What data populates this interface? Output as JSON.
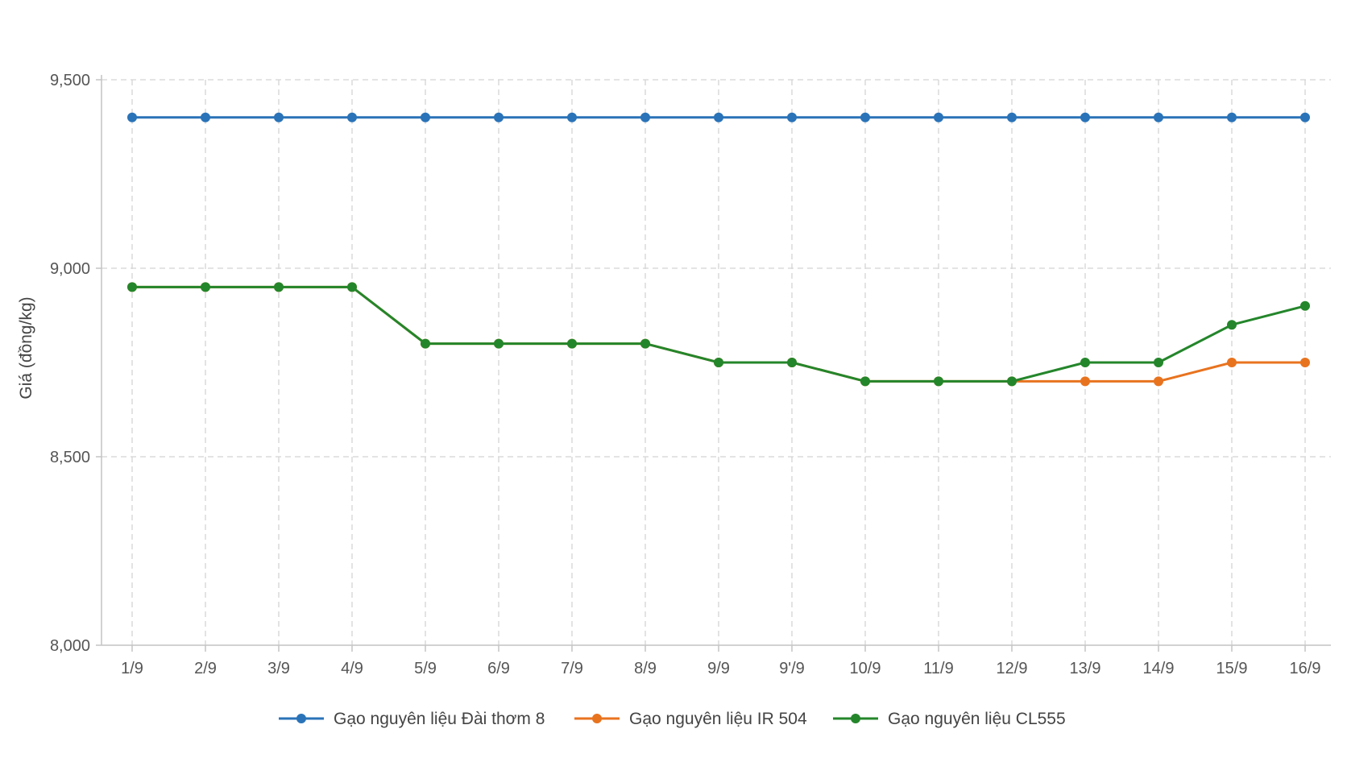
{
  "chart_data": {
    "type": "line",
    "title": "",
    "xlabel": "",
    "ylabel": "Giá (đồng/kg)",
    "ylim": [
      8000,
      9500
    ],
    "yticks": [
      8000,
      8500,
      9000,
      9500
    ],
    "ytick_labels": [
      "8,000",
      "8,500",
      "9,000",
      "9,500"
    ],
    "grid": true,
    "legend_position": "bottom",
    "categories": [
      "1/9",
      "2/9",
      "3/9",
      "4/9",
      "5/9",
      "6/9",
      "7/9",
      "8/9",
      "9/9",
      "9ʹ/9",
      "10/9",
      "11/9",
      "12/9",
      "13/9",
      "14/9",
      "15/9",
      "16/9"
    ],
    "series": [
      {
        "name": "Gạo nguyên liệu Đài thơm 8",
        "color": "#2a73b8",
        "values": [
          9400,
          9400,
          9400,
          9400,
          9400,
          9400,
          9400,
          9400,
          9400,
          9400,
          9400,
          9400,
          9400,
          9400,
          9400,
          9400,
          9400
        ]
      },
      {
        "name": "Gạo nguyên liệu IR 504",
        "color": "#e8731f",
        "values": [
          8950,
          8950,
          8950,
          8950,
          8800,
          8800,
          8800,
          8800,
          8750,
          8750,
          8700,
          8700,
          8700,
          8700,
          8700,
          8750,
          8750
        ]
      },
      {
        "name": "Gạo nguyên liệu CL555",
        "color": "#24862b",
        "values": [
          8950,
          8950,
          8950,
          8950,
          8800,
          8800,
          8800,
          8800,
          8750,
          8750,
          8700,
          8700,
          8700,
          8750,
          8750,
          8850,
          8900
        ]
      }
    ]
  }
}
